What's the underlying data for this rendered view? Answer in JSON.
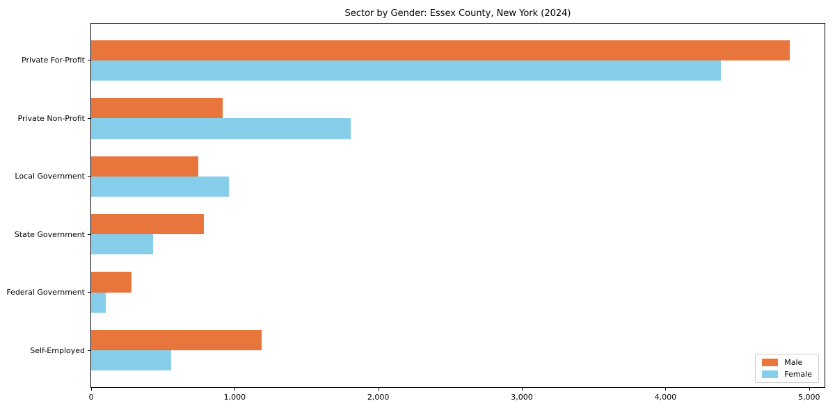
{
  "chart_data": {
    "type": "bar",
    "orientation": "horizontal",
    "title": "Sector by Gender: Essex County, New York (2024)",
    "xlabel": "",
    "ylabel": "",
    "categories": [
      "Private For-Profit",
      "Private Non-Profit",
      "Local Government",
      "State Government",
      "Federal Government",
      "Self-Employed"
    ],
    "series": [
      {
        "name": "Male",
        "color": "#e8763c",
        "values": [
          4865,
          915,
          745,
          785,
          280,
          1185
        ]
      },
      {
        "name": "Female",
        "color": "#87ceeb",
        "values": [
          4385,
          1810,
          960,
          430,
          100,
          555
        ]
      }
    ],
    "xlim": [
      0,
      5108
    ],
    "x_tick_values": [
      0,
      1000,
      2000,
      3000,
      4000,
      5000
    ],
    "x_tick_labels": [
      "0",
      "1,000",
      "2,000",
      "3,000",
      "4,000",
      "5,000"
    ],
    "legend": {
      "position": "lower-right",
      "entries": [
        "Male",
        "Female"
      ]
    },
    "grid": false,
    "background": "#ffffff",
    "axis_color": "#000000"
  }
}
